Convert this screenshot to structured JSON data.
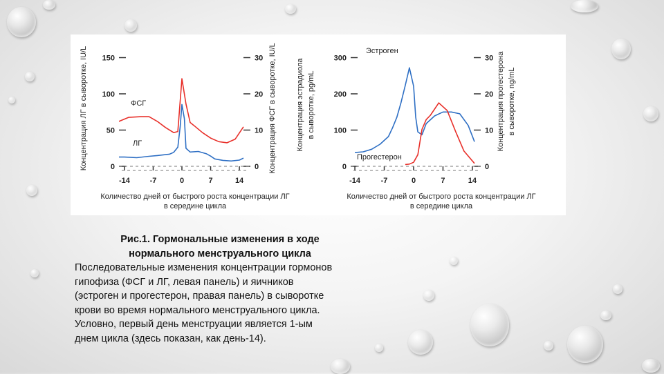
{
  "chart_data": [
    {
      "type": "line",
      "panel": "left",
      "y_left_label": "Концентрация ЛГ в сыворотке, IU/L",
      "y_right_label": "Концентрация ФСГ в сыворотке, IU/L",
      "xlabel_line1": "Количество дней от быстрого роста концентрации ЛГ",
      "xlabel_line2": "в середине цикла",
      "x_ticks": [
        "-14",
        "-7",
        "0",
        "7",
        "14"
      ],
      "y_left_ticks": [
        "0",
        "50",
        "100",
        "150"
      ],
      "y_right_ticks": [
        "0",
        "10",
        "20",
        "30"
      ],
      "xlim": [
        -15,
        15
      ],
      "ylim_left": [
        0,
        160
      ],
      "ylim_right": [
        0,
        32
      ],
      "series": [
        {
          "name": "ФСГ",
          "color": "#e8302a",
          "axis": "right",
          "x": [
            -16,
            -13,
            -10,
            -8,
            -6,
            -4,
            -2,
            -1,
            0,
            1,
            2,
            3,
            5,
            7,
            9,
            11,
            13,
            15
          ],
          "values": [
            12.1,
            13.5,
            13.7,
            13.7,
            12.4,
            10.7,
            9.3,
            9.6,
            24.2,
            17.2,
            12.1,
            11.2,
            9.3,
            7.8,
            6.8,
            6.5,
            7.5,
            10.9
          ]
        },
        {
          "name": "ЛГ",
          "color": "#2e6fc4",
          "axis": "left",
          "x": [
            -16,
            -14,
            -11,
            -8,
            -6,
            -4,
            -3,
            -2,
            -1,
            -0.4,
            0,
            0.6,
            1,
            2,
            4,
            6,
            7,
            8,
            10,
            12,
            14,
            15
          ],
          "values": [
            12.8,
            12.8,
            11.9,
            13.8,
            14.9,
            16.1,
            16.8,
            19.2,
            26.4,
            55.6,
            85.3,
            65.6,
            24.9,
            19.7,
            20.5,
            17.2,
            14.1,
            10.2,
            8.2,
            7.3,
            8.6,
            11.3
          ]
        }
      ],
      "annotations": [
        "ФСГ",
        "ЛГ"
      ]
    },
    {
      "type": "line",
      "panel": "right",
      "y_left_label_line1": "Концентрация эстрадиола",
      "y_left_label_line2": "в сыворотке, pg/mL",
      "y_right_label_line1": "Концентрация прогестерона",
      "y_right_label_line2": "в сыворотке, ng/mL",
      "xlabel_line1": "Количество дней от быстрого роста концентрации ЛГ",
      "xlabel_line2": "в середине цикла",
      "x_ticks": [
        "-14",
        "-7",
        "0",
        "7",
        "14"
      ],
      "y_left_ticks": [
        "0",
        "100",
        "200",
        "300"
      ],
      "y_right_ticks": [
        "0",
        "10",
        "20",
        "30"
      ],
      "xlim": [
        -15,
        15
      ],
      "ylim_left": [
        0,
        320
      ],
      "ylim_right": [
        0,
        32
      ],
      "series": [
        {
          "name": "Эстроген",
          "color": "#2e6fc4",
          "axis": "left",
          "x": [
            -14,
            -12,
            -10,
            -8,
            -6,
            -5,
            -4,
            -3,
            -2,
            -1,
            0,
            0.5,
            1,
            2,
            3,
            5,
            7,
            9,
            11,
            13,
            14.5
          ],
          "values": [
            38,
            40,
            47,
            61,
            82,
            107,
            135,
            176,
            223,
            272,
            221,
            136,
            95,
            87,
            118,
            139,
            150,
            150,
            145,
            113,
            68
          ]
        },
        {
          "name": "Прогестерон",
          "color": "#e8302a",
          "axis": "right",
          "x": [
            -2,
            -1,
            0,
            1,
            2,
            3,
            4,
            6,
            8,
            10,
            12,
            14.5
          ],
          "values": [
            0.5,
            0.6,
            1.1,
            3.2,
            10.2,
            12.9,
            14.1,
            17.5,
            15.4,
            9.6,
            4.2,
            0.8
          ]
        }
      ],
      "annotations": [
        "Эстроген",
        "Прогестерон"
      ]
    }
  ],
  "caption": {
    "title_line1": "Рис.1. Гормональные изменения в ходе",
    "title_line2": "нормального менструального цикла",
    "body": [
      "Последовательные изменения концентрации гормонов",
      "гипофиза (ФСГ и ЛГ, левая панель) и яичников",
      "(эстроген и прогестерон, правая панель) в сыворотке",
      "крови во время нормального менструального цикла.",
      "Условно, первый день менструации является 1-ым",
      "днем цикла (здесь показан, как день-14)."
    ]
  }
}
